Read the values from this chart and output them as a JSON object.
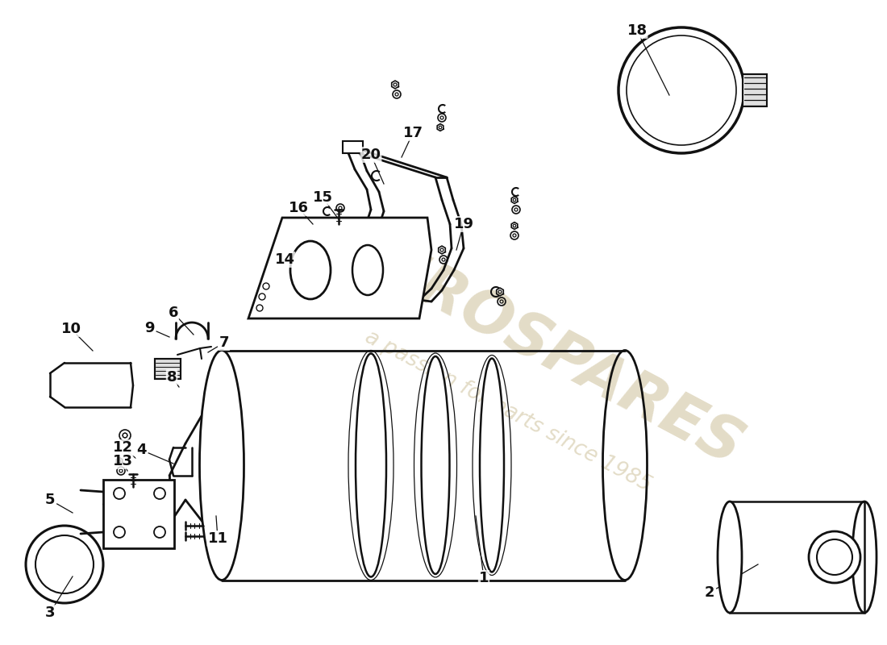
{
  "background_color": "#ffffff",
  "line_color": "#111111",
  "wm_color": "#c8ba90",
  "wm1": "EUROSPARES",
  "wm2": "a passion for parts since 1985",
  "figsize": [
    11.0,
    8.0
  ],
  "dpi": 100,
  "labels": [
    [
      "1",
      600,
      717,
      590,
      640
    ],
    [
      "2",
      880,
      735,
      940,
      700
    ],
    [
      "3",
      62,
      760,
      90,
      715
    ],
    [
      "4",
      175,
      558,
      215,
      575
    ],
    [
      "5",
      62,
      620,
      90,
      636
    ],
    [
      "6",
      215,
      388,
      240,
      415
    ],
    [
      "7",
      278,
      425,
      258,
      437
    ],
    [
      "8",
      213,
      468,
      222,
      480
    ],
    [
      "9",
      185,
      407,
      210,
      418
    ],
    [
      "10",
      88,
      408,
      115,
      435
    ],
    [
      "11",
      270,
      668,
      268,
      640
    ],
    [
      "12",
      152,
      555,
      168,
      568
    ],
    [
      "13",
      152,
      572,
      158,
      584
    ],
    [
      "14",
      353,
      322,
      400,
      345
    ],
    [
      "15",
      400,
      245,
      420,
      272
    ],
    [
      "16",
      370,
      258,
      388,
      278
    ],
    [
      "17",
      512,
      165,
      498,
      195
    ],
    [
      "18",
      790,
      38,
      830,
      118
    ],
    [
      "19",
      575,
      278,
      566,
      310
    ],
    [
      "20",
      460,
      192,
      476,
      228
    ]
  ]
}
